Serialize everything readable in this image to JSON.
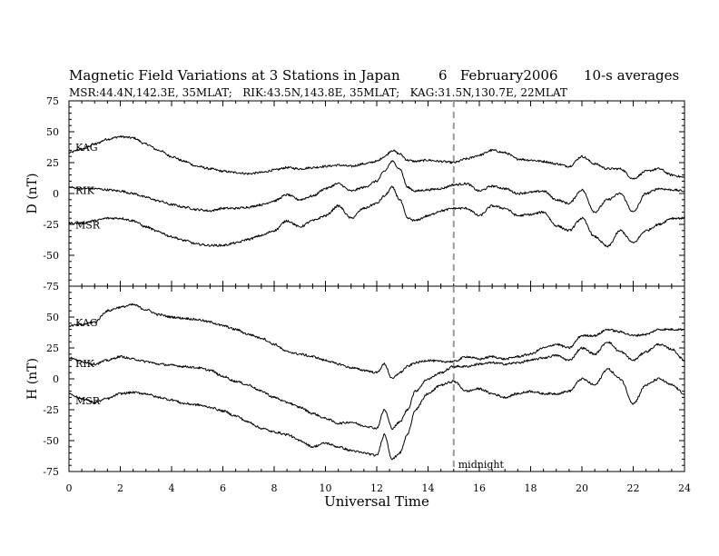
{
  "chart_data": {
    "type": "line",
    "title": "Magnetic Field Variations at 3 Stations in Japan",
    "title_date": "6   February2006",
    "title_note": "10-s averages",
    "subtitle": "MSR:44.4N,142.3E, 35MLAT;   RIK:43.5N,143.8E, 35MLAT;   KAG:31.5N,130.7E, 22MLAT",
    "xlabel": "Universal Time",
    "xlim": [
      0,
      24
    ],
    "xticks": [
      "0",
      "2",
      "4",
      "6",
      "8",
      "10",
      "12",
      "14",
      "16",
      "18",
      "20",
      "22",
      "24"
    ],
    "x": [
      0,
      0.5,
      1,
      1.5,
      2,
      2.5,
      3,
      3.5,
      4,
      4.5,
      5,
      5.5,
      6,
      6.5,
      7,
      7.5,
      8,
      8.5,
      9,
      9.5,
      10,
      10.5,
      11,
      11.5,
      12,
      12.3,
      12.6,
      12.9,
      13.2,
      13.5,
      14,
      14.5,
      15,
      15.5,
      16,
      16.5,
      17,
      17.5,
      18,
      18.5,
      19,
      19.5,
      20,
      20.5,
      21,
      21.5,
      22,
      22.5,
      23,
      23.5,
      24
    ],
    "annotation": {
      "text": "midnight",
      "x": 15
    },
    "grid": false,
    "panels": [
      {
        "ylabel": "D (nT)",
        "ylim": [
          -75,
          75
        ],
        "yticks": [
          "75",
          "50",
          "25",
          "0",
          "-25",
          "-50",
          "-75"
        ],
        "series": [
          {
            "name": "KAG",
            "values": [
              33,
              36,
              40,
              44,
              46,
              45,
              40,
              35,
              30,
              26,
              22,
              20,
              18,
              17,
              16,
              17,
              19,
              21,
              20,
              21,
              22,
              23,
              22,
              24,
              26,
              30,
              35,
              32,
              27,
              26,
              27,
              26,
              25,
              28,
              31,
              35,
              33,
              28,
              27,
              26,
              24,
              22,
              30,
              24,
              20,
              20,
              12,
              18,
              20,
              15,
              13
            ]
          },
          {
            "name": "RIK",
            "values": [
              5,
              4,
              4,
              3,
              2,
              0,
              -3,
              -6,
              -9,
              -11,
              -13,
              -14,
              -12,
              -12,
              -11,
              -9,
              -6,
              -1,
              -5,
              -2,
              4,
              8,
              2,
              5,
              10,
              18,
              26,
              20,
              5,
              2,
              3,
              4,
              7,
              8,
              2,
              6,
              4,
              0,
              1,
              2,
              -5,
              -8,
              3,
              -15,
              -5,
              0,
              -15,
              0,
              4,
              3,
              2
            ]
          },
          {
            "name": "MSR",
            "values": [
              -24,
              -24,
              -22,
              -20,
              -20,
              -22,
              -27,
              -31,
              -35,
              -38,
              -41,
              -42,
              -42,
              -40,
              -37,
              -34,
              -30,
              -22,
              -27,
              -22,
              -18,
              -10,
              -20,
              -12,
              -8,
              -2,
              5,
              -5,
              -20,
              -22,
              -18,
              -14,
              -12,
              -12,
              -18,
              -10,
              -12,
              -18,
              -17,
              -15,
              -26,
              -30,
              -20,
              -35,
              -43,
              -30,
              -40,
              -30,
              -25,
              -20,
              -20
            ]
          }
        ]
      },
      {
        "ylabel": "H (nT)",
        "ylim": [
          -75,
          75
        ],
        "yticks": [
          "75",
          "50",
          "25",
          "0",
          "-25",
          "-50",
          "-75"
        ],
        "series": [
          {
            "name": "KAG",
            "values": [
              43,
              44,
              46,
              55,
              58,
              60,
              56,
              52,
              50,
              49,
              48,
              46,
              43,
              40,
              36,
              33,
              28,
              22,
              20,
              18,
              15,
              12,
              9,
              7,
              5,
              12,
              0,
              5,
              10,
              13,
              15,
              14,
              14,
              18,
              16,
              18,
              16,
              18,
              20,
              25,
              28,
              25,
              35,
              35,
              40,
              38,
              35,
              36,
              40,
              40,
              40
            ]
          },
          {
            "name": "RIK",
            "values": [
              17,
              14,
              12,
              15,
              18,
              16,
              14,
              12,
              11,
              10,
              9,
              7,
              2,
              -2,
              -5,
              -10,
              -15,
              -19,
              -23,
              -28,
              -32,
              -36,
              -35,
              -38,
              -40,
              -25,
              -40,
              -35,
              -25,
              -10,
              0,
              5,
              10,
              10,
              12,
              13,
              12,
              13,
              15,
              17,
              19,
              15,
              25,
              20,
              30,
              22,
              15,
              22,
              28,
              24,
              15
            ]
          },
          {
            "name": "MSR",
            "values": [
              -12,
              -16,
              -19,
              -16,
              -12,
              -11,
              -12,
              -15,
              -17,
              -20,
              -21,
              -23,
              -26,
              -30,
              -35,
              -40,
              -43,
              -45,
              -50,
              -55,
              -52,
              -55,
              -58,
              -60,
              -62,
              -45,
              -65,
              -60,
              -45,
              -25,
              -12,
              -5,
              -2,
              -10,
              -8,
              -12,
              -15,
              -12,
              -10,
              -12,
              -12,
              -10,
              0,
              -5,
              8,
              0,
              -20,
              -5,
              0,
              -5,
              -12
            ]
          }
        ]
      }
    ]
  }
}
